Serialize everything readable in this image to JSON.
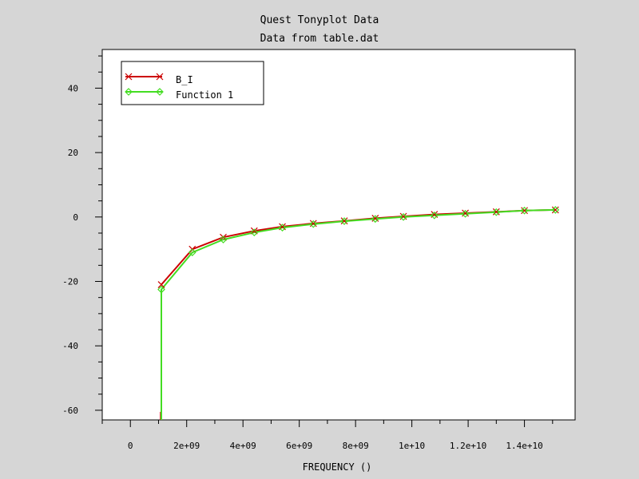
{
  "chart_data": {
    "type": "line",
    "title": "Quest Tonyplot Data",
    "subtitle": "Data from table.dat",
    "xlabel": "FREQUENCY ()",
    "ylabel": "",
    "xlim": [
      -1000000000,
      15800000000
    ],
    "ylim": [
      -63,
      52
    ],
    "grid": false,
    "legend_position": "top-left",
    "x_ticks": [
      0,
      2000000000,
      4000000000,
      6000000000,
      8000000000,
      10000000000,
      12000000000,
      14000000000
    ],
    "x_tick_labels": [
      "0",
      "2e+09",
      "4e+09",
      "6e+09",
      "8e+09",
      "1e+10",
      "1.2e+10",
      "1.4e+10"
    ],
    "y_ticks": [
      -60,
      -40,
      -20,
      0,
      20,
      40
    ],
    "y_tick_labels": [
      "-60",
      "-40",
      "-20",
      "0",
      "20",
      "40"
    ],
    "series": [
      {
        "name": "B_I",
        "color": "#cc0000",
        "marker": "x",
        "x": [
          1100000000,
          2200000000,
          3300000000,
          4400000000,
          5400000000,
          6500000000,
          7600000000,
          8700000000,
          9700000000,
          10800000000,
          11900000000,
          13000000000,
          14000000000,
          15100000000
        ],
        "y": [
          -21,
          -10,
          -6.3,
          -4.3,
          -3,
          -2,
          -1.2,
          -0.4,
          0.2,
          0.8,
          1.2,
          1.6,
          2.0,
          2.2
        ]
      },
      {
        "name": "Function 1",
        "color": "#44dd22",
        "marker": "diamond",
        "x": [
          1100000000,
          1100000000,
          2200000000,
          3300000000,
          4400000000,
          5400000000,
          6500000000,
          7600000000,
          8700000000,
          9700000000,
          10800000000,
          11900000000,
          13000000000,
          14000000000,
          15100000000
        ],
        "y": [
          -63,
          -22.5,
          -11,
          -7,
          -4.8,
          -3.3,
          -2.2,
          -1.3,
          -0.6,
          0,
          0.5,
          1.0,
          1.5,
          2.0,
          2.2
        ],
        "marker_from": 1
      }
    ]
  }
}
